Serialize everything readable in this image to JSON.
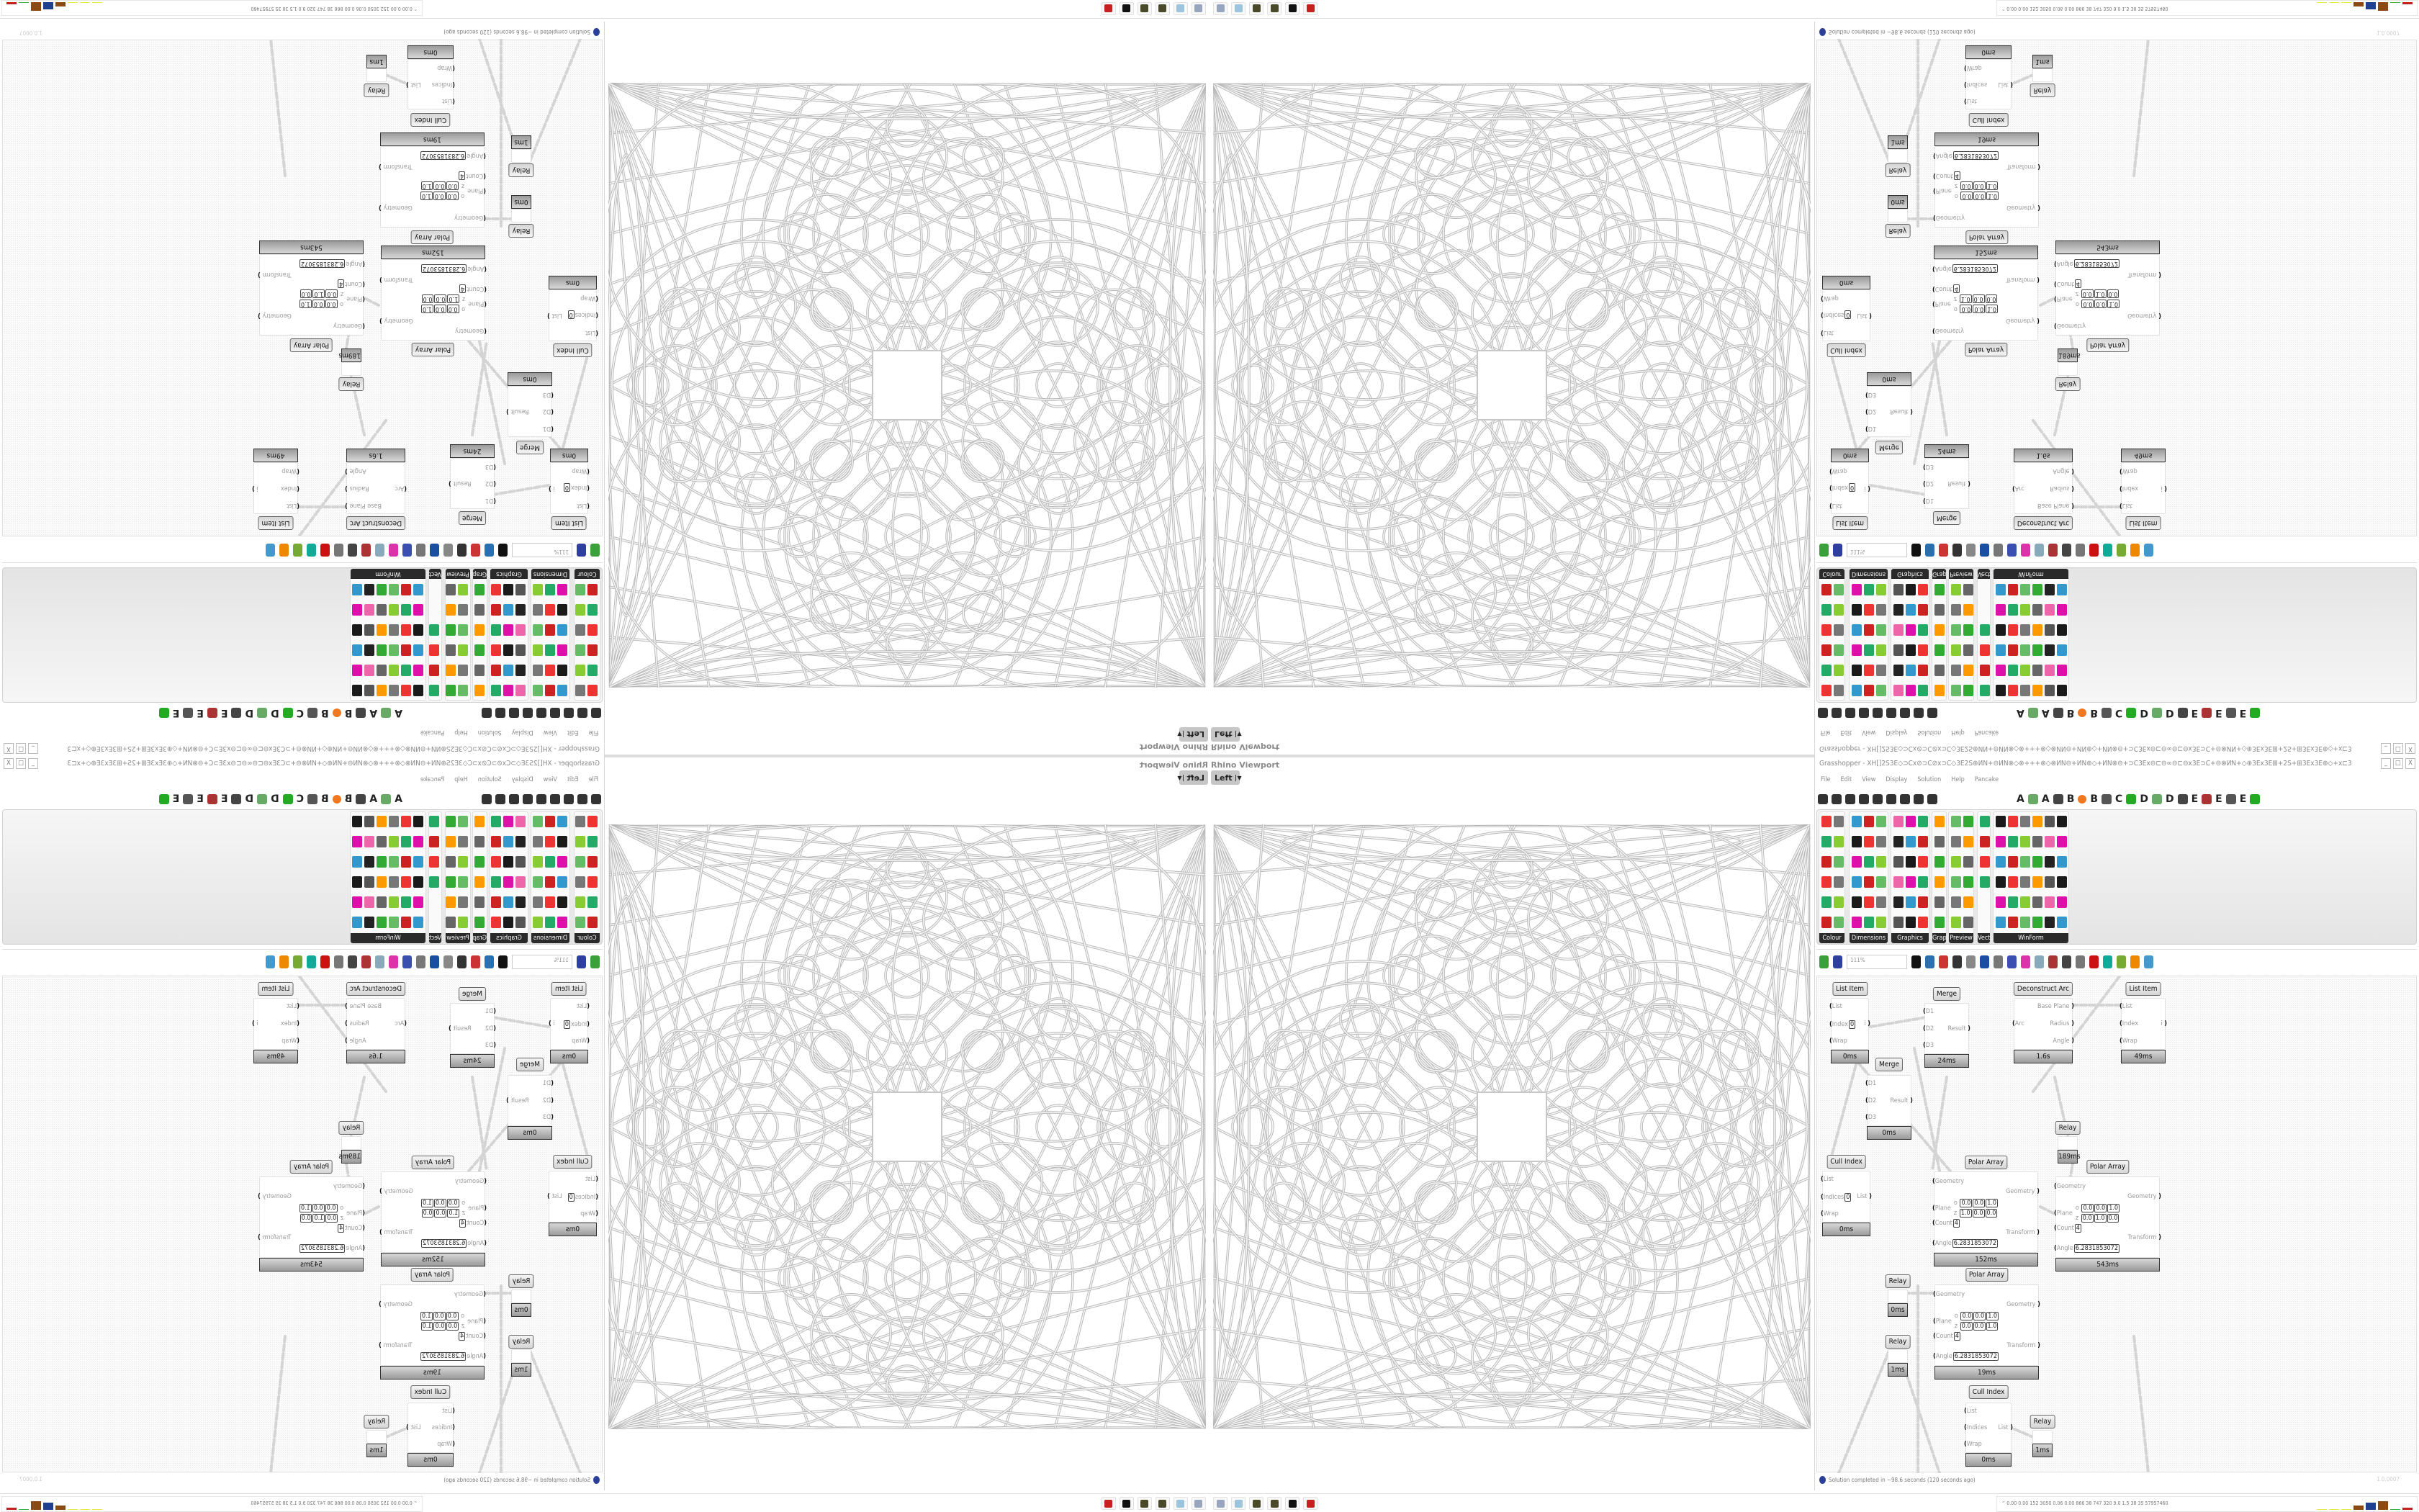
{
  "viewport": {
    "label": "Rhino Viewport",
    "view": "Left"
  },
  "window": {
    "title": "Grasshopper - XH[]2S3E◇⊃Cx⊘⊃C⊘x⊃C◇3E2S⊕ИN+⊖ИN⊗◇⊗+++⊗◇⊗ИN⊖+ИN⊕◇+ИN⊗⊖+⊃C3Ex⊖⊏⊖∞⊖⊏⊖x3E⊃C+⊖⊗ИN+◇⊕3Ex3E⊞+2S+⊞3Ex3E⊕◇+x⊏3E⊞++⊃C...",
    "minimize": "_",
    "maximize": "□",
    "close": "X"
  },
  "menu": [
    "File",
    "Edit",
    "View",
    "Display",
    "Solution",
    "Help",
    "Pancake"
  ],
  "tab_letters": [
    "A",
    "A",
    "B",
    "B",
    "C",
    "D",
    "D",
    "E",
    "E",
    "E"
  ],
  "palette": {
    "panels": [
      "Colour",
      "Dimensions",
      "Graphics",
      "Grap...",
      "Preview",
      "Vect...",
      "WinForm"
    ]
  },
  "canvas_toolbar": {
    "zoom": "111%"
  },
  "nodes": [
    {
      "title": "List Item",
      "inputs": [
        {
          "name": "List"
        },
        {
          "name": "Index",
          "value": "0"
        },
        {
          "name": "Wrap"
        }
      ],
      "outputs": [
        "i"
      ],
      "time": "0ms"
    },
    {
      "title": "Merge",
      "inputs": [
        {
          "name": "D1"
        },
        {
          "name": "D2"
        },
        {
          "name": "D3"
        }
      ],
      "outputs": [
        "Result"
      ],
      "time": "24ms"
    },
    {
      "title": "Deconstruct Arc",
      "inputs": [
        {
          "name": "Arc"
        }
      ],
      "outputs": [
        "Base Plane",
        "Radius",
        "Angle"
      ],
      "time": "1.6s"
    },
    {
      "title": "List Item",
      "inputs": [
        {
          "name": "List"
        },
        {
          "name": "Index"
        },
        {
          "name": "Wrap"
        }
      ],
      "outputs": [
        "i"
      ],
      "time": "49ms"
    },
    {
      "title": "Merge",
      "inputs": [
        {
          "name": "D1"
        },
        {
          "name": "D2"
        },
        {
          "name": "D3"
        }
      ],
      "outputs": [
        "Result"
      ],
      "time": "0ms"
    },
    {
      "title": "Relay",
      "inputs": [],
      "outputs": [],
      "time": "189ms"
    },
    {
      "title": "Cull Index",
      "inputs": [
        {
          "name": "List"
        },
        {
          "name": "Indices",
          "value": "0"
        },
        {
          "name": "Wrap"
        }
      ],
      "outputs": [
        "List"
      ],
      "time": "0ms"
    },
    {
      "title": "Polar Array",
      "inputs": [
        {
          "name": "Geometry"
        },
        {
          "name": "Plane",
          "plane_o": [
            "0.0",
            "0.0",
            "1.0"
          ],
          "plane_z": [
            "1.0",
            "0.0",
            "0.0"
          ]
        },
        {
          "name": "Count",
          "value": "4"
        },
        {
          "name": "Angle",
          "value": "6.2831853072"
        }
      ],
      "outputs": [
        "Geometry",
        "Transform"
      ],
      "time": "152ms"
    },
    {
      "title": "Polar Array",
      "inputs": [
        {
          "name": "Geometry"
        },
        {
          "name": "Plane",
          "plane_o": [
            "0.0",
            "0.0",
            "1.0"
          ],
          "plane_z": [
            "0.0",
            "1.0",
            "0.0"
          ]
        },
        {
          "name": "Count",
          "value": "4"
        },
        {
          "name": "Angle",
          "value": "6.2831853072"
        }
      ],
      "outputs": [
        "Geometry",
        "Transform"
      ],
      "time": "543ms"
    },
    {
      "title": "Polar Array",
      "inputs": [
        {
          "name": "Geometry"
        },
        {
          "name": "Plane",
          "plane_o": [
            "0.0",
            "0.0",
            "1.0"
          ],
          "plane_z": [
            "0.0",
            "0.0",
            "1.0"
          ]
        },
        {
          "name": "Count",
          "value": "4"
        },
        {
          "name": "Angle",
          "value": "6.2831853072"
        }
      ],
      "outputs": [
        "Geometry",
        "Transform"
      ],
      "time": "19ms"
    },
    {
      "title": "Relay",
      "inputs": [],
      "outputs": [],
      "time": "0ms"
    },
    {
      "title": "Relay",
      "inputs": [],
      "outputs": [],
      "time": "1ms"
    },
    {
      "title": "Cull Index",
      "inputs": [
        {
          "name": "List"
        },
        {
          "name": "Indices"
        },
        {
          "name": "Wrap"
        }
      ],
      "outputs": [
        "List"
      ],
      "time": "0ms"
    },
    {
      "title": "Relay",
      "inputs": [],
      "outputs": [],
      "time": "1ms"
    }
  ],
  "status": {
    "message": "Solution completed in ~98.6 seconds (120 seconds ago)",
    "version": "1.0.0007"
  },
  "taskbar": {
    "apps": [
      "rhino-red-icon",
      "rhino-bw-icon",
      "seed-icon",
      "seed-icon",
      "notepad-icon",
      "scroll-icon",
      "floppy-icon",
      "firefox-icon",
      "terminal-icon"
    ],
    "stats": "0.00 0.00 152 3050 0.06 0.00 866 38 747 320 9.0 1.5 38 35 57957460",
    "meter_colors": [
      "#e8e84a",
      "#e8e84a",
      "#e8e84a",
      "#8b4a12",
      "#1f3f8f",
      "#8b4a12",
      "#3cb043",
      "#c02020"
    ]
  }
}
